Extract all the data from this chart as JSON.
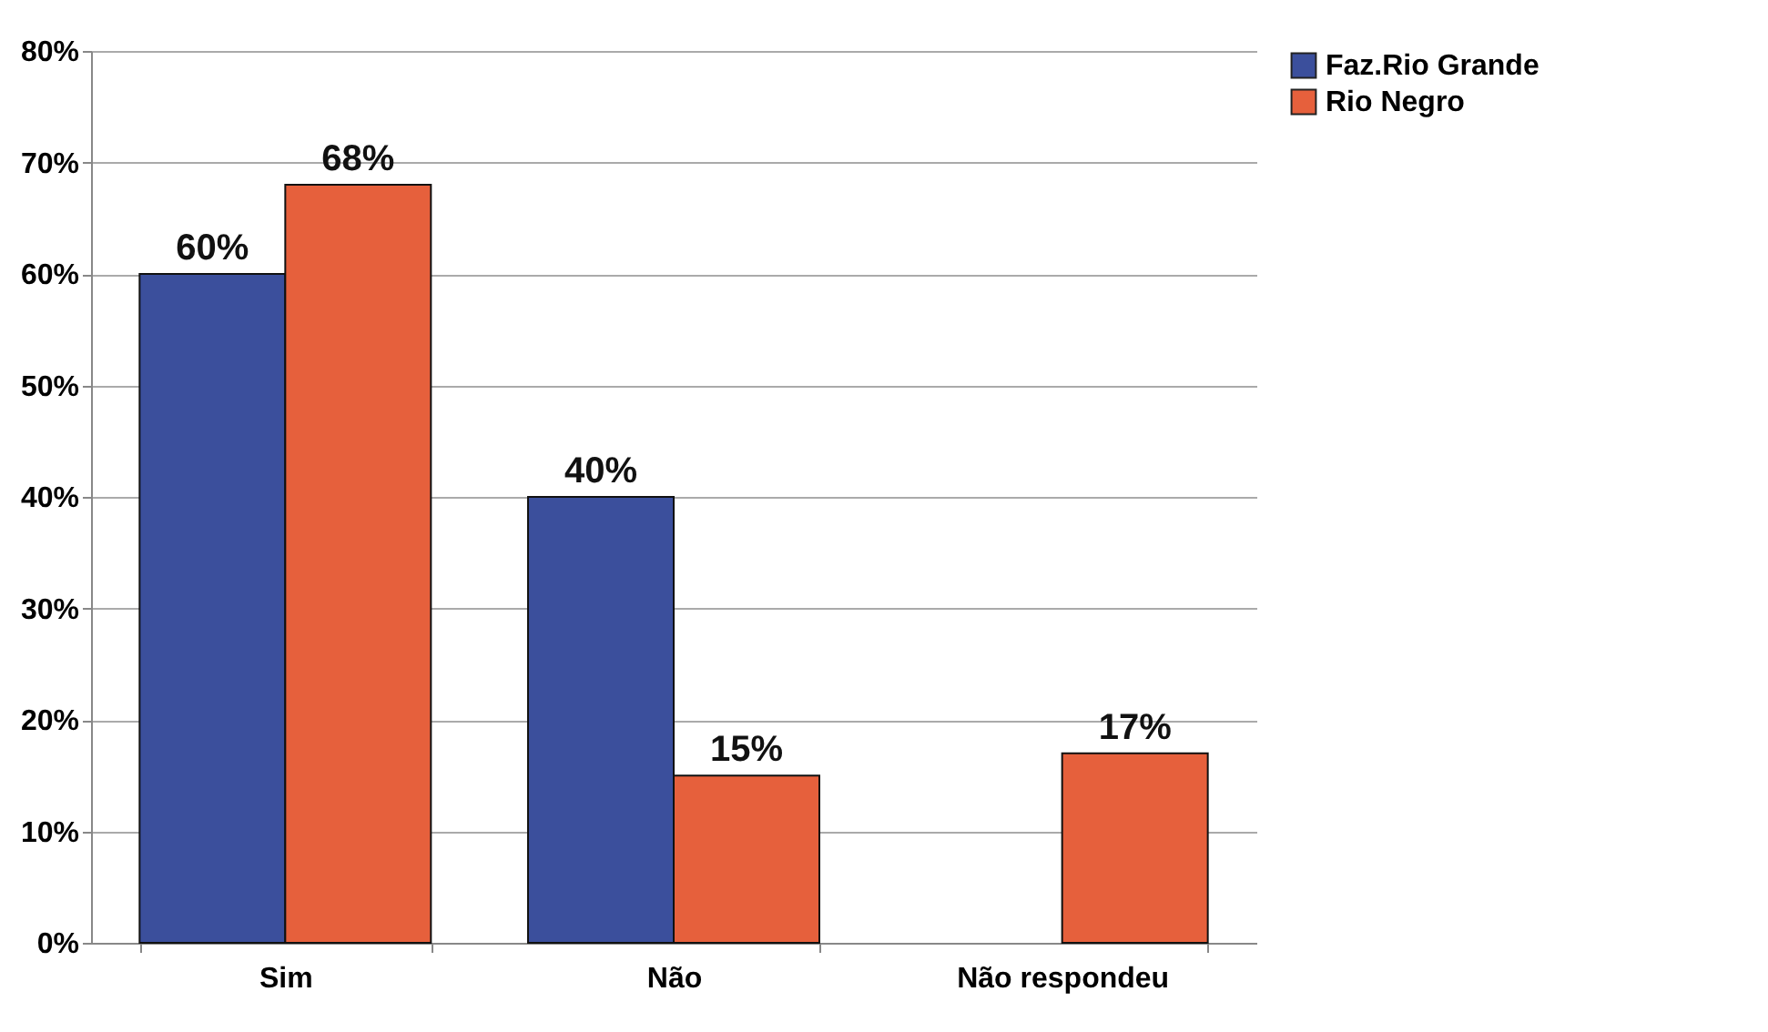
{
  "chart_data": {
    "type": "bar",
    "categories": [
      "Sim",
      "Não",
      "Não respondeu"
    ],
    "series": [
      {
        "name": "Faz.Rio Grande",
        "color": "#3b4f9c",
        "values": [
          60,
          40,
          null
        ],
        "value_labels": [
          "60%",
          "40%",
          null
        ]
      },
      {
        "name": "Rio Negro",
        "color": "#e6603c",
        "values": [
          68,
          15,
          17
        ],
        "value_labels": [
          "68%",
          "15%",
          "17%"
        ]
      }
    ],
    "ylim": [
      0,
      80
    ],
    "yticks": [
      {
        "value": 0,
        "label": "0%"
      },
      {
        "value": 10,
        "label": "10%"
      },
      {
        "value": 20,
        "label": "20%"
      },
      {
        "value": 30,
        "label": "30%"
      },
      {
        "value": 40,
        "label": "40%"
      },
      {
        "value": 50,
        "label": "50%"
      },
      {
        "value": 60,
        "label": "60%"
      },
      {
        "value": 70,
        "label": "70%"
      },
      {
        "value": 80,
        "label": "80%"
      }
    ],
    "grid": "y",
    "legend": "right"
  }
}
